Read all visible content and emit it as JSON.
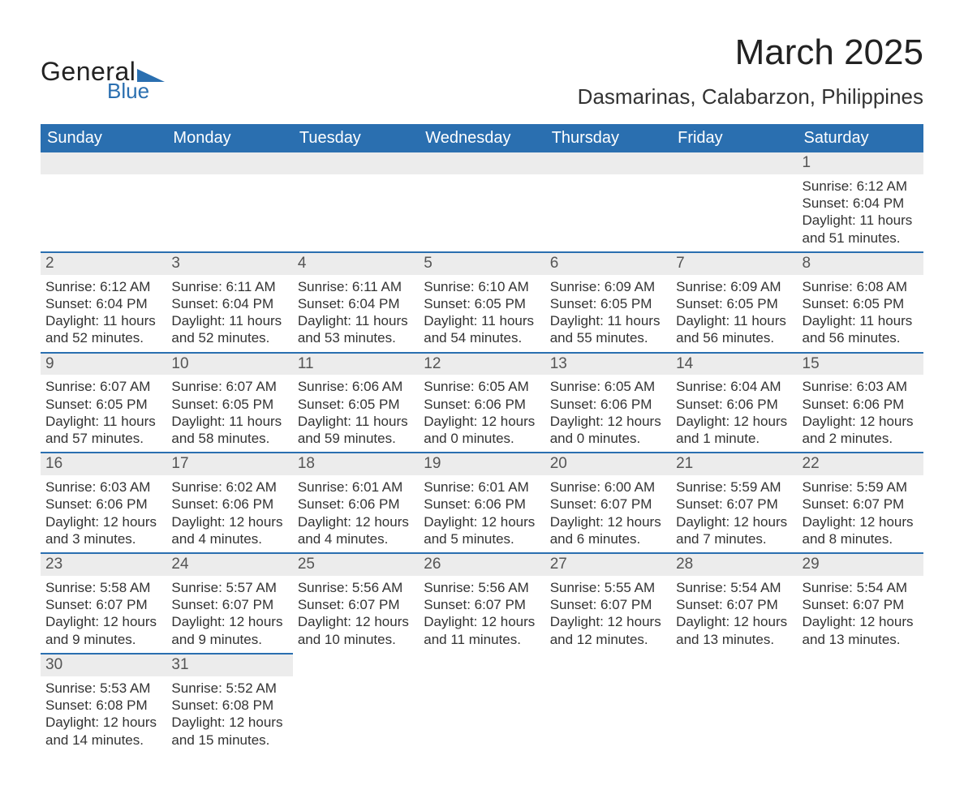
{
  "brand": {
    "word1": "General",
    "word2": "Blue",
    "accent": "#2a6fb0"
  },
  "title": "March 2025",
  "location": "Dasmarinas, Calabarzon, Philippines",
  "style": {
    "header_bg": "#2a6fb0",
    "header_fg": "#ffffff",
    "daynum_bg": "#ececec",
    "row_border": "#2a6fb0",
    "body_text": "#333333",
    "title_fontsize_pt": 33,
    "location_fontsize_pt": 20,
    "header_fontsize_pt": 15,
    "cell_fontsize_pt": 13
  },
  "day_headers": [
    "Sunday",
    "Monday",
    "Tuesday",
    "Wednesday",
    "Thursday",
    "Friday",
    "Saturday"
  ],
  "weeks": [
    [
      null,
      null,
      null,
      null,
      null,
      null,
      {
        "n": "1",
        "sunrise": "Sunrise: 6:12 AM",
        "sunset": "Sunset: 6:04 PM",
        "day1": "Daylight: 11 hours",
        "day2": "and 51 minutes."
      }
    ],
    [
      {
        "n": "2",
        "sunrise": "Sunrise: 6:12 AM",
        "sunset": "Sunset: 6:04 PM",
        "day1": "Daylight: 11 hours",
        "day2": "and 52 minutes."
      },
      {
        "n": "3",
        "sunrise": "Sunrise: 6:11 AM",
        "sunset": "Sunset: 6:04 PM",
        "day1": "Daylight: 11 hours",
        "day2": "and 52 minutes."
      },
      {
        "n": "4",
        "sunrise": "Sunrise: 6:11 AM",
        "sunset": "Sunset: 6:04 PM",
        "day1": "Daylight: 11 hours",
        "day2": "and 53 minutes."
      },
      {
        "n": "5",
        "sunrise": "Sunrise: 6:10 AM",
        "sunset": "Sunset: 6:05 PM",
        "day1": "Daylight: 11 hours",
        "day2": "and 54 minutes."
      },
      {
        "n": "6",
        "sunrise": "Sunrise: 6:09 AM",
        "sunset": "Sunset: 6:05 PM",
        "day1": "Daylight: 11 hours",
        "day2": "and 55 minutes."
      },
      {
        "n": "7",
        "sunrise": "Sunrise: 6:09 AM",
        "sunset": "Sunset: 6:05 PM",
        "day1": "Daylight: 11 hours",
        "day2": "and 56 minutes."
      },
      {
        "n": "8",
        "sunrise": "Sunrise: 6:08 AM",
        "sunset": "Sunset: 6:05 PM",
        "day1": "Daylight: 11 hours",
        "day2": "and 56 minutes."
      }
    ],
    [
      {
        "n": "9",
        "sunrise": "Sunrise: 6:07 AM",
        "sunset": "Sunset: 6:05 PM",
        "day1": "Daylight: 11 hours",
        "day2": "and 57 minutes."
      },
      {
        "n": "10",
        "sunrise": "Sunrise: 6:07 AM",
        "sunset": "Sunset: 6:05 PM",
        "day1": "Daylight: 11 hours",
        "day2": "and 58 minutes."
      },
      {
        "n": "11",
        "sunrise": "Sunrise: 6:06 AM",
        "sunset": "Sunset: 6:05 PM",
        "day1": "Daylight: 11 hours",
        "day2": "and 59 minutes."
      },
      {
        "n": "12",
        "sunrise": "Sunrise: 6:05 AM",
        "sunset": "Sunset: 6:06 PM",
        "day1": "Daylight: 12 hours",
        "day2": "and 0 minutes."
      },
      {
        "n": "13",
        "sunrise": "Sunrise: 6:05 AM",
        "sunset": "Sunset: 6:06 PM",
        "day1": "Daylight: 12 hours",
        "day2": "and 0 minutes."
      },
      {
        "n": "14",
        "sunrise": "Sunrise: 6:04 AM",
        "sunset": "Sunset: 6:06 PM",
        "day1": "Daylight: 12 hours",
        "day2": "and 1 minute."
      },
      {
        "n": "15",
        "sunrise": "Sunrise: 6:03 AM",
        "sunset": "Sunset: 6:06 PM",
        "day1": "Daylight: 12 hours",
        "day2": "and 2 minutes."
      }
    ],
    [
      {
        "n": "16",
        "sunrise": "Sunrise: 6:03 AM",
        "sunset": "Sunset: 6:06 PM",
        "day1": "Daylight: 12 hours",
        "day2": "and 3 minutes."
      },
      {
        "n": "17",
        "sunrise": "Sunrise: 6:02 AM",
        "sunset": "Sunset: 6:06 PM",
        "day1": "Daylight: 12 hours",
        "day2": "and 4 minutes."
      },
      {
        "n": "18",
        "sunrise": "Sunrise: 6:01 AM",
        "sunset": "Sunset: 6:06 PM",
        "day1": "Daylight: 12 hours",
        "day2": "and 4 minutes."
      },
      {
        "n": "19",
        "sunrise": "Sunrise: 6:01 AM",
        "sunset": "Sunset: 6:06 PM",
        "day1": "Daylight: 12 hours",
        "day2": "and 5 minutes."
      },
      {
        "n": "20",
        "sunrise": "Sunrise: 6:00 AM",
        "sunset": "Sunset: 6:07 PM",
        "day1": "Daylight: 12 hours",
        "day2": "and 6 minutes."
      },
      {
        "n": "21",
        "sunrise": "Sunrise: 5:59 AM",
        "sunset": "Sunset: 6:07 PM",
        "day1": "Daylight: 12 hours",
        "day2": "and 7 minutes."
      },
      {
        "n": "22",
        "sunrise": "Sunrise: 5:59 AM",
        "sunset": "Sunset: 6:07 PM",
        "day1": "Daylight: 12 hours",
        "day2": "and 8 minutes."
      }
    ],
    [
      {
        "n": "23",
        "sunrise": "Sunrise: 5:58 AM",
        "sunset": "Sunset: 6:07 PM",
        "day1": "Daylight: 12 hours",
        "day2": "and 9 minutes."
      },
      {
        "n": "24",
        "sunrise": "Sunrise: 5:57 AM",
        "sunset": "Sunset: 6:07 PM",
        "day1": "Daylight: 12 hours",
        "day2": "and 9 minutes."
      },
      {
        "n": "25",
        "sunrise": "Sunrise: 5:56 AM",
        "sunset": "Sunset: 6:07 PM",
        "day1": "Daylight: 12 hours",
        "day2": "and 10 minutes."
      },
      {
        "n": "26",
        "sunrise": "Sunrise: 5:56 AM",
        "sunset": "Sunset: 6:07 PM",
        "day1": "Daylight: 12 hours",
        "day2": "and 11 minutes."
      },
      {
        "n": "27",
        "sunrise": "Sunrise: 5:55 AM",
        "sunset": "Sunset: 6:07 PM",
        "day1": "Daylight: 12 hours",
        "day2": "and 12 minutes."
      },
      {
        "n": "28",
        "sunrise": "Sunrise: 5:54 AM",
        "sunset": "Sunset: 6:07 PM",
        "day1": "Daylight: 12 hours",
        "day2": "and 13 minutes."
      },
      {
        "n": "29",
        "sunrise": "Sunrise: 5:54 AM",
        "sunset": "Sunset: 6:07 PM",
        "day1": "Daylight: 12 hours",
        "day2": "and 13 minutes."
      }
    ],
    [
      {
        "n": "30",
        "sunrise": "Sunrise: 5:53 AM",
        "sunset": "Sunset: 6:08 PM",
        "day1": "Daylight: 12 hours",
        "day2": "and 14 minutes."
      },
      {
        "n": "31",
        "sunrise": "Sunrise: 5:52 AM",
        "sunset": "Sunset: 6:08 PM",
        "day1": "Daylight: 12 hours",
        "day2": "and 15 minutes."
      },
      null,
      null,
      null,
      null,
      null
    ]
  ]
}
